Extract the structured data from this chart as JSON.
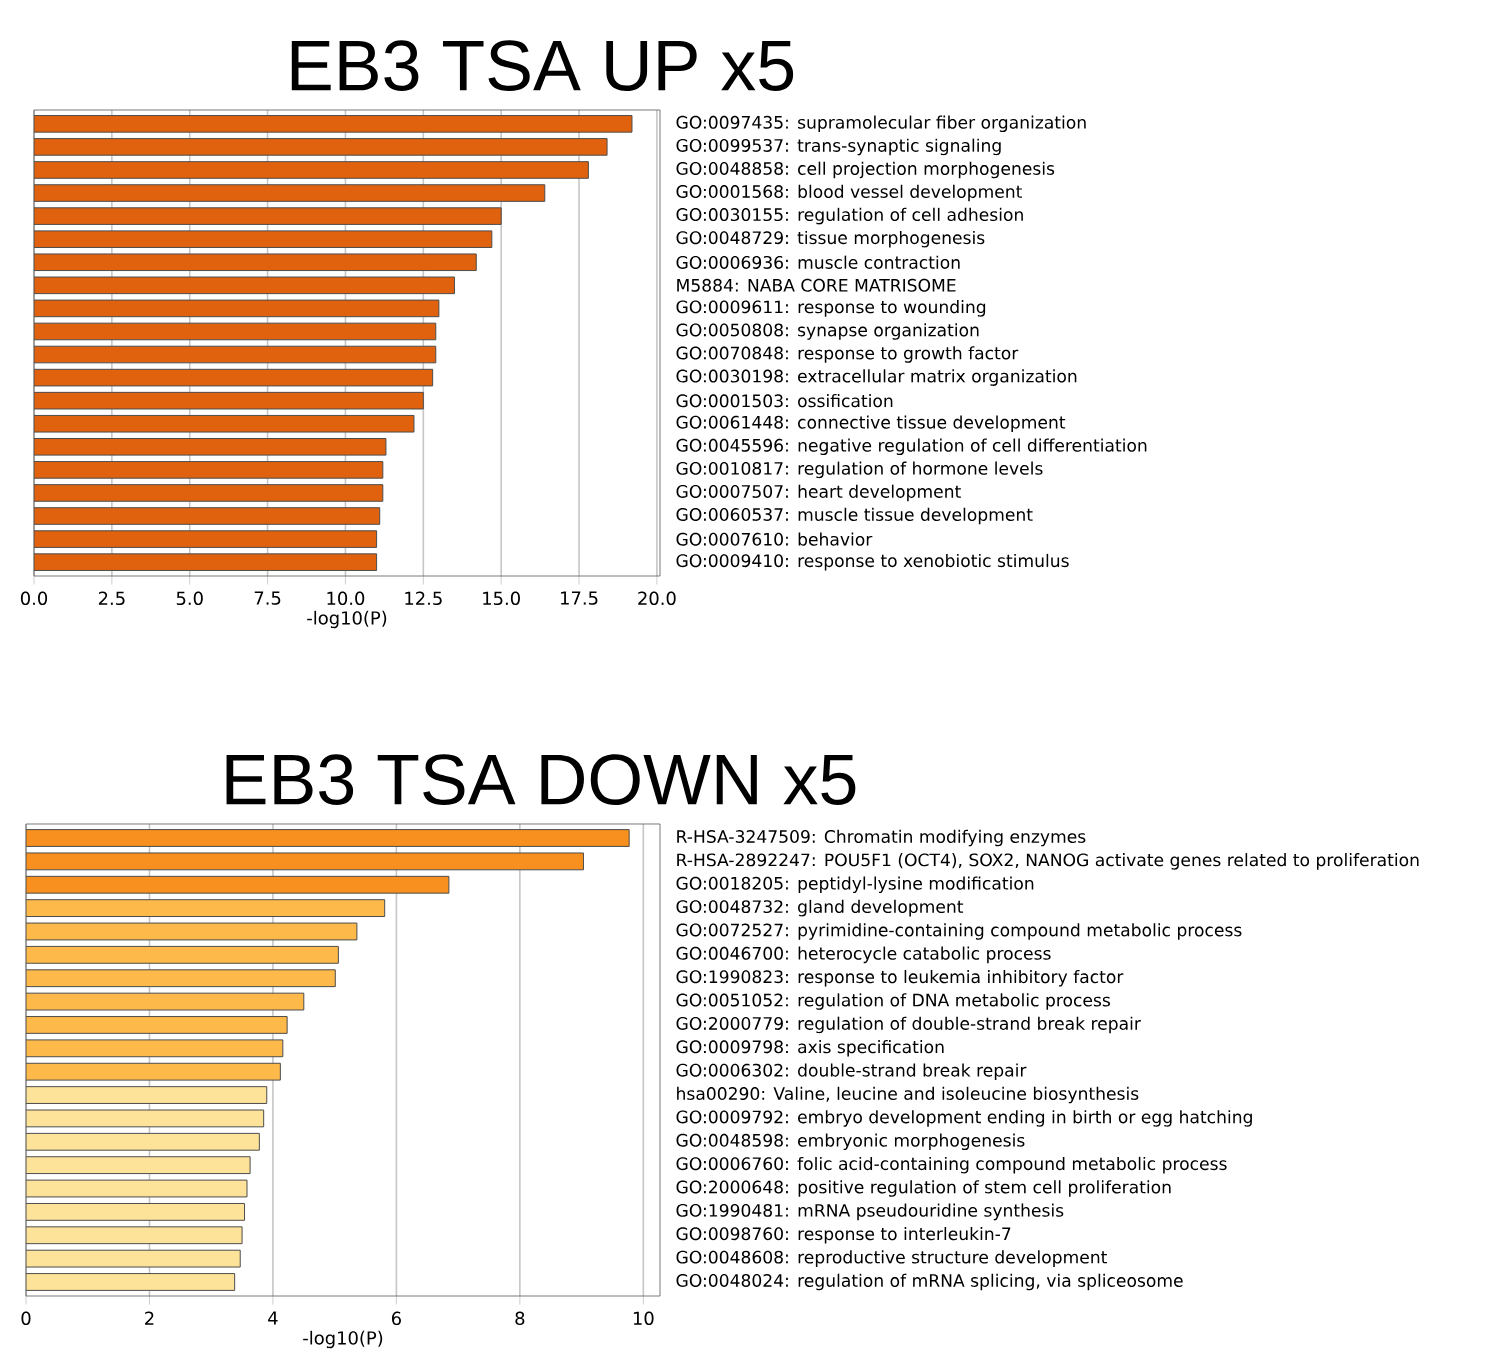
{
  "chart_data": [
    {
      "type": "bar",
      "orientation": "horizontal",
      "title": "EB3 TSA UP x5",
      "xlabel": "-log10(P)",
      "grid": "x",
      "categories": [
        "GO:0097435: supramolecular fiber organization",
        "GO:0099537: trans-synaptic signaling",
        "GO:0048858: cell projection morphogenesis",
        "GO:0001568: blood vessel development",
        "GO:0030155: regulation of cell adhesion",
        "GO:0048729: tissue morphogenesis",
        "GO:0006936: muscle contraction",
        "M5884: NABA CORE MATRISOME",
        "GO:0009611: response to wounding",
        "GO:0050808: synapse organization",
        "GO:0070848: response to growth factor",
        "GO:0030198: extracellular matrix organization",
        "GO:0001503: ossification",
        "GO:0061448: connective tissue development",
        "GO:0045596: negative regulation of cell differentiation",
        "GO:0010817: regulation of hormone levels",
        "GO:0007507: heart development",
        "GO:0060537: muscle tissue development",
        "GO:0007610: behavior",
        "GO:0009410: response to xenobiotic stimulus"
      ],
      "values": [
        19.2,
        18.4,
        17.8,
        16.4,
        15.0,
        14.7,
        14.2,
        13.5,
        13.0,
        12.9,
        12.9,
        12.8,
        12.5,
        12.2,
        11.3,
        11.2,
        11.2,
        11.1,
        11.0,
        11.0
      ],
      "color": "#e0620e",
      "xlim": [
        0,
        20.1
      ],
      "xticks": [
        {
          "value": 0,
          "label": "0.0"
        },
        2.5,
        {
          "value": 5,
          "label": "5.0"
        },
        7.5,
        {
          "value": 10,
          "label": "10.0"
        },
        12.5,
        {
          "value": 15,
          "label": "15.0"
        },
        17.5,
        {
          "value": 20,
          "label": "20.0"
        }
      ]
    },
    {
      "type": "bar",
      "orientation": "horizontal",
      "title": "EB3 TSA DOWN x5",
      "xlabel": "-log10(P)",
      "grid": "x",
      "categories": [
        "R-HSA-3247509: Chromatin modifying enzymes",
        "R-HSA-2892247: POU5F1 (OCT4), SOX2, NANOG activate genes related to proliferation",
        "GO:0018205: peptidyl-lysine modification",
        "GO:0048732: gland development",
        "GO:0072527: pyrimidine-containing compound metabolic process",
        "GO:0046700: heterocycle catabolic process",
        "GO:1990823: response to leukemia inhibitory factor",
        "GO:0051052: regulation of DNA metabolic process",
        "GO:2000779: regulation of double-strand break repair",
        "GO:0009798: axis specification",
        "GO:0006302: double-strand break repair",
        "hsa00290: Valine, leucine and isoleucine biosynthesis",
        "GO:0009792: embryo development ending in birth or egg hatching",
        "GO:0048598: embryonic morphogenesis",
        "GO:0006760: folic acid-containing compound metabolic process",
        "GO:2000648: positive regulation of stem cell proliferation",
        "GO:1990481: mRNA pseudouridine synthesis",
        "GO:0098760: response to interleukin-7",
        "GO:0048608: reproductive structure development",
        "GO:0048024: regulation of mRNA splicing, via spliceosome"
      ],
      "values": [
        9.77,
        9.03,
        6.85,
        5.81,
        5.36,
        5.06,
        5.01,
        4.5,
        4.23,
        4.16,
        4.12,
        3.9,
        3.85,
        3.78,
        3.63,
        3.58,
        3.54,
        3.5,
        3.47,
        3.38
      ],
      "colors": [
        "#f7901e",
        "#f7901e",
        "#f7901e",
        "#fdb94a",
        "#fdb94a",
        "#fdb94a",
        "#fdb94a",
        "#fdb94a",
        "#fdb94a",
        "#fdb94a",
        "#fdb94a",
        "#fde29a",
        "#fde29a",
        "#fde29a",
        "#fde29a",
        "#fde29a",
        "#fde29a",
        "#fde29a",
        "#fde29a",
        "#fde29a"
      ],
      "xlim": [
        0,
        10.27
      ],
      "xticks": [
        0,
        2,
        4,
        6,
        8,
        10
      ]
    }
  ]
}
